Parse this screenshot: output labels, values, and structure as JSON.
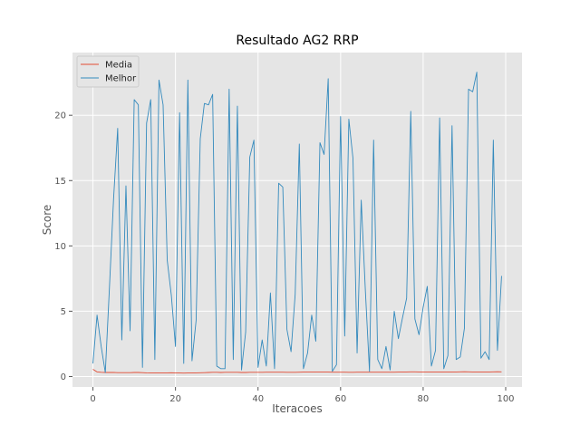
{
  "chart_data": {
    "type": "line",
    "title": "Resultado AG2 RRP",
    "xlabel": "Iteracoes",
    "ylabel": "Score",
    "xlim": [
      -4.95,
      103.95
    ],
    "ylim": [
      -0.8,
      24.8
    ],
    "xticks": [
      0,
      20,
      40,
      60,
      80,
      100
    ],
    "yticks": [
      0,
      5,
      10,
      15,
      20
    ],
    "grid": true,
    "legend": "top-left",
    "colors": {
      "media": "#E24A33",
      "melhor": "#348ABD",
      "background": "#E5E5E5",
      "grid": "#FFFFFF"
    },
    "x": [
      0,
      1,
      2,
      3,
      4,
      5,
      6,
      7,
      8,
      9,
      10,
      11,
      12,
      13,
      14,
      15,
      16,
      17,
      18,
      19,
      20,
      21,
      22,
      23,
      24,
      25,
      26,
      27,
      28,
      29,
      30,
      31,
      32,
      33,
      34,
      35,
      36,
      37,
      38,
      39,
      40,
      41,
      42,
      43,
      44,
      45,
      46,
      47,
      48,
      49,
      50,
      51,
      52,
      53,
      54,
      55,
      56,
      57,
      58,
      59,
      60,
      61,
      62,
      63,
      64,
      65,
      66,
      67,
      68,
      69,
      70,
      71,
      72,
      73,
      74,
      75,
      76,
      77,
      78,
      79,
      80,
      81,
      82,
      83,
      84,
      85,
      86,
      87,
      88,
      89,
      90,
      91,
      92,
      93,
      94,
      95,
      96,
      97,
      98,
      99
    ],
    "series": [
      {
        "name": "Media",
        "values": [
          0.55,
          0.35,
          0.32,
          0.31,
          0.31,
          0.31,
          0.3,
          0.3,
          0.3,
          0.3,
          0.31,
          0.31,
          0.3,
          0.28,
          0.27,
          0.27,
          0.28,
          0.28,
          0.28,
          0.29,
          0.28,
          0.27,
          0.26,
          0.27,
          0.27,
          0.28,
          0.29,
          0.3,
          0.31,
          0.32,
          0.32,
          0.31,
          0.32,
          0.32,
          0.32,
          0.32,
          0.31,
          0.31,
          0.32,
          0.32,
          0.32,
          0.32,
          0.33,
          0.33,
          0.33,
          0.33,
          0.33,
          0.32,
          0.32,
          0.32,
          0.33,
          0.34,
          0.35,
          0.35,
          0.34,
          0.34,
          0.34,
          0.34,
          0.33,
          0.33,
          0.33,
          0.33,
          0.32,
          0.32,
          0.33,
          0.33,
          0.33,
          0.33,
          0.33,
          0.33,
          0.33,
          0.33,
          0.33,
          0.33,
          0.34,
          0.34,
          0.35,
          0.36,
          0.36,
          0.35,
          0.35,
          0.35,
          0.35,
          0.35,
          0.35,
          0.34,
          0.34,
          0.35,
          0.35,
          0.36,
          0.37,
          0.36,
          0.35,
          0.35,
          0.35,
          0.35,
          0.35,
          0.36,
          0.37,
          0.36
        ]
      },
      {
        "name": "Melhor",
        "values": [
          1.0,
          4.7,
          2.3,
          0.3,
          6.8,
          13.6,
          19.0,
          2.8,
          14.6,
          3.5,
          21.2,
          20.8,
          0.7,
          19.4,
          21.2,
          1.3,
          22.7,
          20.8,
          8.9,
          6.2,
          2.3,
          20.2,
          1.0,
          22.7,
          1.2,
          4.3,
          18.2,
          20.9,
          20.8,
          21.6,
          0.8,
          0.6,
          0.6,
          22.0,
          1.3,
          20.7,
          0.5,
          3.4,
          16.8,
          18.1,
          0.7,
          2.8,
          0.8,
          6.4,
          0.6,
          14.8,
          14.5,
          3.6,
          1.9,
          6.3,
          17.8,
          0.6,
          1.8,
          4.7,
          2.7,
          17.9,
          17.0,
          22.8,
          0.4,
          0.9,
          19.9,
          3.1,
          19.7,
          16.7,
          1.8,
          13.5,
          6.6,
          0.4,
          18.1,
          1.3,
          0.6,
          2.3,
          0.5,
          5.0,
          2.9,
          4.5,
          6.0,
          20.3,
          4.4,
          3.2,
          5.3,
          6.9,
          0.8,
          2.0,
          19.8,
          0.6,
          1.6,
          19.2,
          1.3,
          1.5,
          3.7,
          22.0,
          21.8,
          23.3,
          1.4,
          1.9,
          1.3,
          18.1,
          2.0,
          7.7
        ]
      }
    ]
  }
}
